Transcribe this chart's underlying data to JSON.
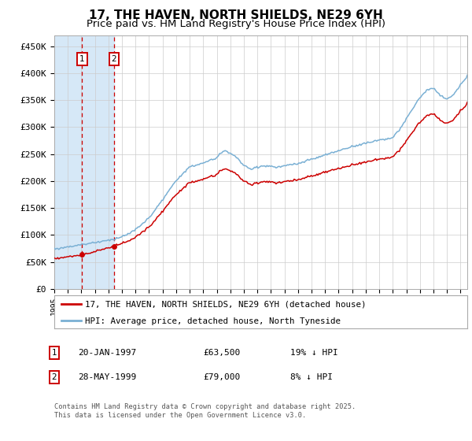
{
  "title": "17, THE HAVEN, NORTH SHIELDS, NE29 6YH",
  "subtitle": "Price paid vs. HM Land Registry's House Price Index (HPI)",
  "ylim": [
    0,
    470000
  ],
  "yticks": [
    0,
    50000,
    100000,
    150000,
    200000,
    250000,
    300000,
    350000,
    400000,
    450000
  ],
  "ytick_labels": [
    "£0",
    "£50K",
    "£100K",
    "£150K",
    "£200K",
    "£250K",
    "£300K",
    "£350K",
    "£400K",
    "£450K"
  ],
  "legend_line1": "17, THE HAVEN, NORTH SHIELDS, NE29 6YH (detached house)",
  "legend_line2": "HPI: Average price, detached house, North Tyneside",
  "footnote": "Contains HM Land Registry data © Crown copyright and database right 2025.\nThis data is licensed under the Open Government Licence v3.0.",
  "sale1_label": "1",
  "sale2_label": "2",
  "sale1_date": "20-JAN-1997",
  "sale1_price": "£63,500",
  "sale1_hpi": "19% ↓ HPI",
  "sale2_date": "28-MAY-1999",
  "sale2_price": "£79,000",
  "sale2_hpi": "8% ↓ HPI",
  "line_color_red": "#cc0000",
  "line_color_blue": "#7ab0d4",
  "vline_color": "#cc0000",
  "shade_color": "#d6e8f7",
  "grid_color": "#cccccc",
  "background_color": "#ffffff",
  "title_fontsize": 11,
  "subtitle_fontsize": 9.5,
  "tick_fontsize": 8,
  "sale1_year": 1997.055,
  "sale1_price_val": 63500,
  "sale2_year": 1999.41,
  "sale2_price_val": 79000,
  "xlim_start": 1995.0,
  "xlim_end": 2025.5
}
